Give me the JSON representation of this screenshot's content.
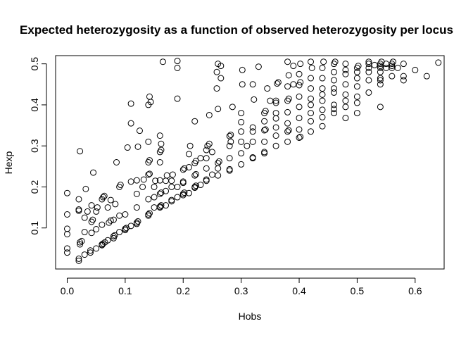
{
  "chart_data": {
    "type": "scatter",
    "title": "Expected heterozygosity as a function of observed heterozygosity per locus",
    "xlabel": "Hobs",
    "ylabel": "Hexp",
    "xlim": [
      -0.02,
      0.65
    ],
    "ylim": [
      0.0,
      0.52
    ],
    "xticks": [
      0.0,
      0.1,
      0.2,
      0.3,
      0.4,
      0.5,
      0.6
    ],
    "xtick_labels": [
      "0.0",
      "0.1",
      "0.2",
      "0.3",
      "0.4",
      "0.5",
      "0.6"
    ],
    "yticks": [
      0.1,
      0.2,
      0.3,
      0.4,
      0.5
    ],
    "ytick_labels": [
      "0.1",
      "0.2",
      "0.3",
      "0.4",
      "0.5"
    ],
    "grid": false,
    "marker": "open-circle",
    "marker_color": "#000000",
    "points": [
      [
        0.0,
        0.04
      ],
      [
        0.0,
        0.05
      ],
      [
        0.0,
        0.085
      ],
      [
        0.0,
        0.098
      ],
      [
        0.0,
        0.133
      ],
      [
        0.0,
        0.185
      ],
      [
        0.02,
        0.02
      ],
      [
        0.02,
        0.025
      ],
      [
        0.022,
        0.06
      ],
      [
        0.022,
        0.065
      ],
      [
        0.025,
        0.068
      ],
      [
        0.02,
        0.142
      ],
      [
        0.02,
        0.145
      ],
      [
        0.02,
        0.17
      ],
      [
        0.022,
        0.287
      ],
      [
        0.03,
        0.035
      ],
      [
        0.03,
        0.09
      ],
      [
        0.03,
        0.125
      ],
      [
        0.032,
        0.195
      ],
      [
        0.035,
        0.14
      ],
      [
        0.04,
        0.04
      ],
      [
        0.04,
        0.045
      ],
      [
        0.042,
        0.088
      ],
      [
        0.042,
        0.115
      ],
      [
        0.044,
        0.12
      ],
      [
        0.042,
        0.155
      ],
      [
        0.045,
        0.235
      ],
      [
        0.05,
        0.05
      ],
      [
        0.05,
        0.097
      ],
      [
        0.05,
        0.14
      ],
      [
        0.052,
        0.15
      ],
      [
        0.06,
        0.058
      ],
      [
        0.06,
        0.06
      ],
      [
        0.062,
        0.062
      ],
      [
        0.065,
        0.065
      ],
      [
        0.06,
        0.17
      ],
      [
        0.062,
        0.175
      ],
      [
        0.064,
        0.178
      ],
      [
        0.06,
        0.108
      ],
      [
        0.07,
        0.07
      ],
      [
        0.072,
        0.113
      ],
      [
        0.075,
        0.118
      ],
      [
        0.07,
        0.15
      ],
      [
        0.075,
        0.168
      ],
      [
        0.08,
        0.075
      ],
      [
        0.08,
        0.08
      ],
      [
        0.082,
        0.082
      ],
      [
        0.08,
        0.12
      ],
      [
        0.083,
        0.158
      ],
      [
        0.085,
        0.26
      ],
      [
        0.09,
        0.09
      ],
      [
        0.09,
        0.13
      ],
      [
        0.09,
        0.2
      ],
      [
        0.092,
        0.205
      ],
      [
        0.1,
        0.095
      ],
      [
        0.1,
        0.098
      ],
      [
        0.102,
        0.1
      ],
      [
        0.1,
        0.133
      ],
      [
        0.104,
        0.296
      ],
      [
        0.11,
        0.105
      ],
      [
        0.11,
        0.213
      ],
      [
        0.11,
        0.355
      ],
      [
        0.11,
        0.403
      ],
      [
        0.12,
        0.11
      ],
      [
        0.12,
        0.113
      ],
      [
        0.122,
        0.116
      ],
      [
        0.12,
        0.15
      ],
      [
        0.12,
        0.183
      ],
      [
        0.12,
        0.216
      ],
      [
        0.122,
        0.298
      ],
      [
        0.125,
        0.337
      ],
      [
        0.13,
        0.2
      ],
      [
        0.132,
        0.218
      ],
      [
        0.14,
        0.13
      ],
      [
        0.14,
        0.133
      ],
      [
        0.142,
        0.136
      ],
      [
        0.14,
        0.17
      ],
      [
        0.14,
        0.23
      ],
      [
        0.142,
        0.232
      ],
      [
        0.14,
        0.26
      ],
      [
        0.142,
        0.265
      ],
      [
        0.14,
        0.31
      ],
      [
        0.14,
        0.4
      ],
      [
        0.142,
        0.42
      ],
      [
        0.144,
        0.407
      ],
      [
        0.15,
        0.15
      ],
      [
        0.15,
        0.175
      ],
      [
        0.15,
        0.2
      ],
      [
        0.152,
        0.215
      ],
      [
        0.16,
        0.15
      ],
      [
        0.16,
        0.152
      ],
      [
        0.162,
        0.155
      ],
      [
        0.16,
        0.183
      ],
      [
        0.162,
        0.186
      ],
      [
        0.16,
        0.216
      ],
      [
        0.16,
        0.26
      ],
      [
        0.16,
        0.285
      ],
      [
        0.162,
        0.29
      ],
      [
        0.162,
        0.305
      ],
      [
        0.16,
        0.325
      ],
      [
        0.165,
        0.505
      ],
      [
        0.17,
        0.155
      ],
      [
        0.17,
        0.19
      ],
      [
        0.17,
        0.215
      ],
      [
        0.172,
        0.228
      ],
      [
        0.18,
        0.165
      ],
      [
        0.18,
        0.168
      ],
      [
        0.18,
        0.2
      ],
      [
        0.18,
        0.215
      ],
      [
        0.182,
        0.23
      ],
      [
        0.19,
        0.175
      ],
      [
        0.19,
        0.2
      ],
      [
        0.19,
        0.415
      ],
      [
        0.19,
        0.49
      ],
      [
        0.19,
        0.507
      ],
      [
        0.2,
        0.18
      ],
      [
        0.2,
        0.183
      ],
      [
        0.202,
        0.186
      ],
      [
        0.2,
        0.21
      ],
      [
        0.2,
        0.213
      ],
      [
        0.2,
        0.242
      ],
      [
        0.202,
        0.245
      ],
      [
        0.21,
        0.185
      ],
      [
        0.21,
        0.248
      ],
      [
        0.21,
        0.28
      ],
      [
        0.212,
        0.3
      ],
      [
        0.22,
        0.198
      ],
      [
        0.22,
        0.2
      ],
      [
        0.222,
        0.203
      ],
      [
        0.22,
        0.228
      ],
      [
        0.222,
        0.231
      ],
      [
        0.22,
        0.258
      ],
      [
        0.222,
        0.263
      ],
      [
        0.22,
        0.36
      ],
      [
        0.23,
        0.205
      ],
      [
        0.23,
        0.27
      ],
      [
        0.24,
        0.215
      ],
      [
        0.24,
        0.218
      ],
      [
        0.24,
        0.245
      ],
      [
        0.24,
        0.27
      ],
      [
        0.242,
        0.3
      ],
      [
        0.24,
        0.29
      ],
      [
        0.245,
        0.305
      ],
      [
        0.245,
        0.375
      ],
      [
        0.25,
        0.23
      ],
      [
        0.25,
        0.285
      ],
      [
        0.26,
        0.228
      ],
      [
        0.26,
        0.245
      ],
      [
        0.26,
        0.258
      ],
      [
        0.262,
        0.262
      ],
      [
        0.258,
        0.44
      ],
      [
        0.258,
        0.48
      ],
      [
        0.26,
        0.5
      ],
      [
        0.265,
        0.495
      ],
      [
        0.265,
        0.465
      ],
      [
        0.26,
        0.39
      ],
      [
        0.28,
        0.24
      ],
      [
        0.28,
        0.243
      ],
      [
        0.28,
        0.27
      ],
      [
        0.28,
        0.3
      ],
      [
        0.282,
        0.31
      ],
      [
        0.28,
        0.324
      ],
      [
        0.282,
        0.327
      ],
      [
        0.285,
        0.395
      ],
      [
        0.3,
        0.255
      ],
      [
        0.3,
        0.282
      ],
      [
        0.3,
        0.31
      ],
      [
        0.3,
        0.335
      ],
      [
        0.3,
        0.358
      ],
      [
        0.3,
        0.38
      ],
      [
        0.302,
        0.45
      ],
      [
        0.302,
        0.485
      ],
      [
        0.31,
        0.3
      ],
      [
        0.32,
        0.27
      ],
      [
        0.32,
        0.272
      ],
      [
        0.32,
        0.31
      ],
      [
        0.32,
        0.335
      ],
      [
        0.32,
        0.345
      ],
      [
        0.322,
        0.413
      ],
      [
        0.32,
        0.45
      ],
      [
        0.33,
        0.493
      ],
      [
        0.34,
        0.282
      ],
      [
        0.34,
        0.285
      ],
      [
        0.34,
        0.31
      ],
      [
        0.34,
        0.338
      ],
      [
        0.342,
        0.34
      ],
      [
        0.34,
        0.36
      ],
      [
        0.34,
        0.38
      ],
      [
        0.342,
        0.385
      ],
      [
        0.345,
        0.44
      ],
      [
        0.35,
        0.41
      ],
      [
        0.36,
        0.3
      ],
      [
        0.36,
        0.325
      ],
      [
        0.36,
        0.345
      ],
      [
        0.36,
        0.367
      ],
      [
        0.36,
        0.38
      ],
      [
        0.36,
        0.405
      ],
      [
        0.36,
        0.41
      ],
      [
        0.362,
        0.452
      ],
      [
        0.364,
        0.455
      ],
      [
        0.38,
        0.31
      ],
      [
        0.38,
        0.335
      ],
      [
        0.382,
        0.338
      ],
      [
        0.38,
        0.355
      ],
      [
        0.38,
        0.382
      ],
      [
        0.38,
        0.41
      ],
      [
        0.382,
        0.415
      ],
      [
        0.38,
        0.445
      ],
      [
        0.382,
        0.472
      ],
      [
        0.38,
        0.505
      ],
      [
        0.39,
        0.45
      ],
      [
        0.39,
        0.495
      ],
      [
        0.4,
        0.32
      ],
      [
        0.402,
        0.322
      ],
      [
        0.4,
        0.34
      ],
      [
        0.4,
        0.368
      ],
      [
        0.4,
        0.395
      ],
      [
        0.4,
        0.42
      ],
      [
        0.4,
        0.448
      ],
      [
        0.402,
        0.455
      ],
      [
        0.4,
        0.475
      ],
      [
        0.402,
        0.5
      ],
      [
        0.42,
        0.335
      ],
      [
        0.42,
        0.36
      ],
      [
        0.42,
        0.38
      ],
      [
        0.42,
        0.4
      ],
      [
        0.42,
        0.415
      ],
      [
        0.42,
        0.44
      ],
      [
        0.42,
        0.465
      ],
      [
        0.422,
        0.49
      ],
      [
        0.42,
        0.505
      ],
      [
        0.44,
        0.348
      ],
      [
        0.44,
        0.37
      ],
      [
        0.44,
        0.388
      ],
      [
        0.44,
        0.41
      ],
      [
        0.44,
        0.425
      ],
      [
        0.44,
        0.44
      ],
      [
        0.44,
        0.465
      ],
      [
        0.44,
        0.49
      ],
      [
        0.442,
        0.505
      ],
      [
        0.46,
        0.38
      ],
      [
        0.46,
        0.39
      ],
      [
        0.46,
        0.4
      ],
      [
        0.46,
        0.43
      ],
      [
        0.46,
        0.44
      ],
      [
        0.46,
        0.46
      ],
      [
        0.46,
        0.48
      ],
      [
        0.46,
        0.5
      ],
      [
        0.462,
        0.505
      ],
      [
        0.48,
        0.368
      ],
      [
        0.48,
        0.395
      ],
      [
        0.48,
        0.41
      ],
      [
        0.48,
        0.425
      ],
      [
        0.48,
        0.45
      ],
      [
        0.48,
        0.475
      ],
      [
        0.48,
        0.485
      ],
      [
        0.48,
        0.5
      ],
      [
        0.5,
        0.38
      ],
      [
        0.5,
        0.405
      ],
      [
        0.5,
        0.42
      ],
      [
        0.5,
        0.445
      ],
      [
        0.5,
        0.465
      ],
      [
        0.5,
        0.48
      ],
      [
        0.5,
        0.49
      ],
      [
        0.502,
        0.495
      ],
      [
        0.52,
        0.43
      ],
      [
        0.52,
        0.46
      ],
      [
        0.52,
        0.48
      ],
      [
        0.52,
        0.49
      ],
      [
        0.52,
        0.5
      ],
      [
        0.52,
        0.505
      ],
      [
        0.53,
        0.497
      ],
      [
        0.54,
        0.395
      ],
      [
        0.54,
        0.45
      ],
      [
        0.54,
        0.46
      ],
      [
        0.54,
        0.465
      ],
      [
        0.54,
        0.48
      ],
      [
        0.54,
        0.49
      ],
      [
        0.54,
        0.495
      ],
      [
        0.54,
        0.5
      ],
      [
        0.542,
        0.505
      ],
      [
        0.55,
        0.49
      ],
      [
        0.55,
        0.5
      ],
      [
        0.56,
        0.47
      ],
      [
        0.56,
        0.49
      ],
      [
        0.56,
        0.495
      ],
      [
        0.56,
        0.5
      ],
      [
        0.562,
        0.505
      ],
      [
        0.57,
        0.49
      ],
      [
        0.58,
        0.46
      ],
      [
        0.58,
        0.47
      ],
      [
        0.58,
        0.5
      ],
      [
        0.6,
        0.485
      ],
      [
        0.62,
        0.47
      ],
      [
        0.64,
        0.503
      ]
    ]
  }
}
